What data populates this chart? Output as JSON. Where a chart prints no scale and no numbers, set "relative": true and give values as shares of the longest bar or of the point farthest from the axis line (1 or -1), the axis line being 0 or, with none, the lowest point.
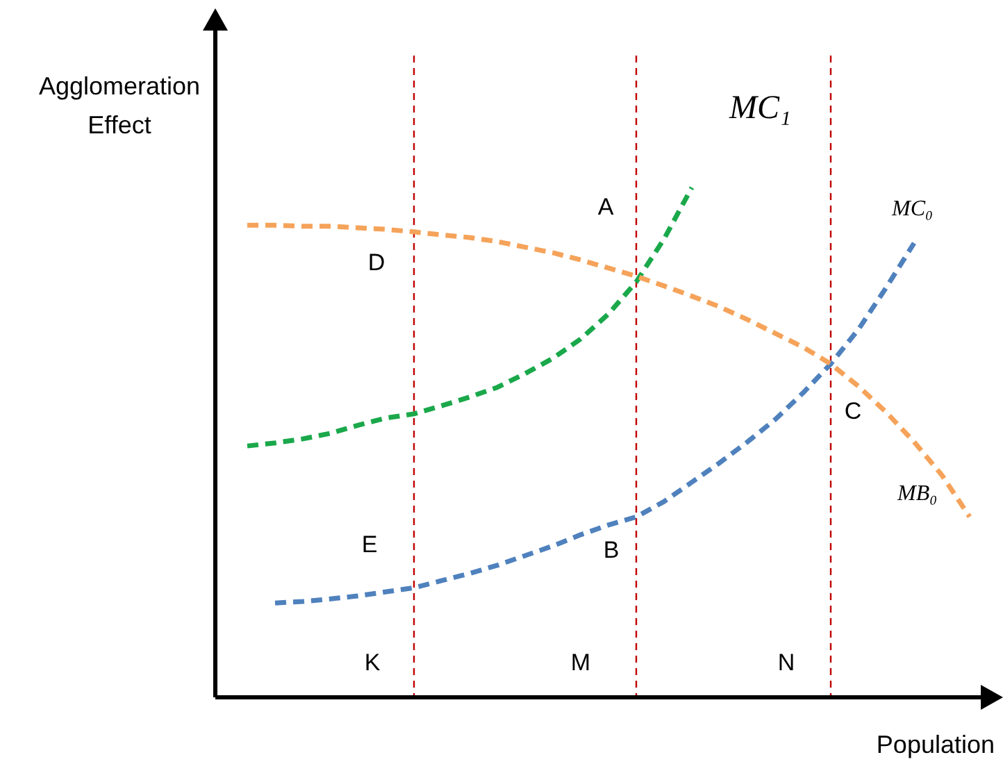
{
  "chart_data": {
    "type": "line",
    "relative": true,
    "xlabel": "Population",
    "ylabel": "Agglomeration Effect",
    "line_style": "dashed",
    "grid": "x",
    "categories": [
      null,
      null,
      null,
      null,
      null,
      null,
      null,
      null,
      null,
      null,
      null,
      null,
      null,
      null,
      null,
      null,
      null,
      null,
      null,
      null,
      null,
      null,
      null,
      null,
      null,
      null,
      null
    ],
    "series": [
      {
        "name": "MC₁",
        "color": "#1aa84a",
        "values": [
          0.493,
          0.499,
          0.507,
          0.518,
          0.534,
          0.548,
          0.556,
          0.572,
          0.589,
          0.608,
          0.635,
          0.665,
          0.703,
          0.752,
          0.815,
          0.899,
          1,
          null,
          null,
          null,
          null,
          null,
          null,
          null,
          null,
          null,
          null
        ]
      },
      {
        "name": "MC₀",
        "color": "#4f81bd",
        "values": [
          null,
          0.185,
          0.188,
          0.193,
          0.199,
          0.207,
          0.215,
          0.229,
          0.243,
          0.259,
          0.278,
          0.297,
          0.319,
          0.338,
          0.354,
          0.384,
          0.422,
          0.46,
          0.501,
          0.545,
          0.597,
          0.654,
          0.722,
          0.804,
          0.891,
          null,
          null
        ]
      },
      {
        "name": "MB₀",
        "color": "#f5a35a",
        "values": [
          0.926,
          0.926,
          0.924,
          0.924,
          0.921,
          0.918,
          0.913,
          0.907,
          0.902,
          0.894,
          0.883,
          0.872,
          0.858,
          0.842,
          0.826,
          0.807,
          0.787,
          0.766,
          0.741,
          0.714,
          0.687,
          0.654,
          0.61,
          0.559,
          0.501,
          0.436,
          0.354
        ]
      }
    ],
    "annotations": [
      "A",
      "D",
      "C",
      "B",
      "E",
      "K",
      "M",
      "N"
    ]
  }
}
